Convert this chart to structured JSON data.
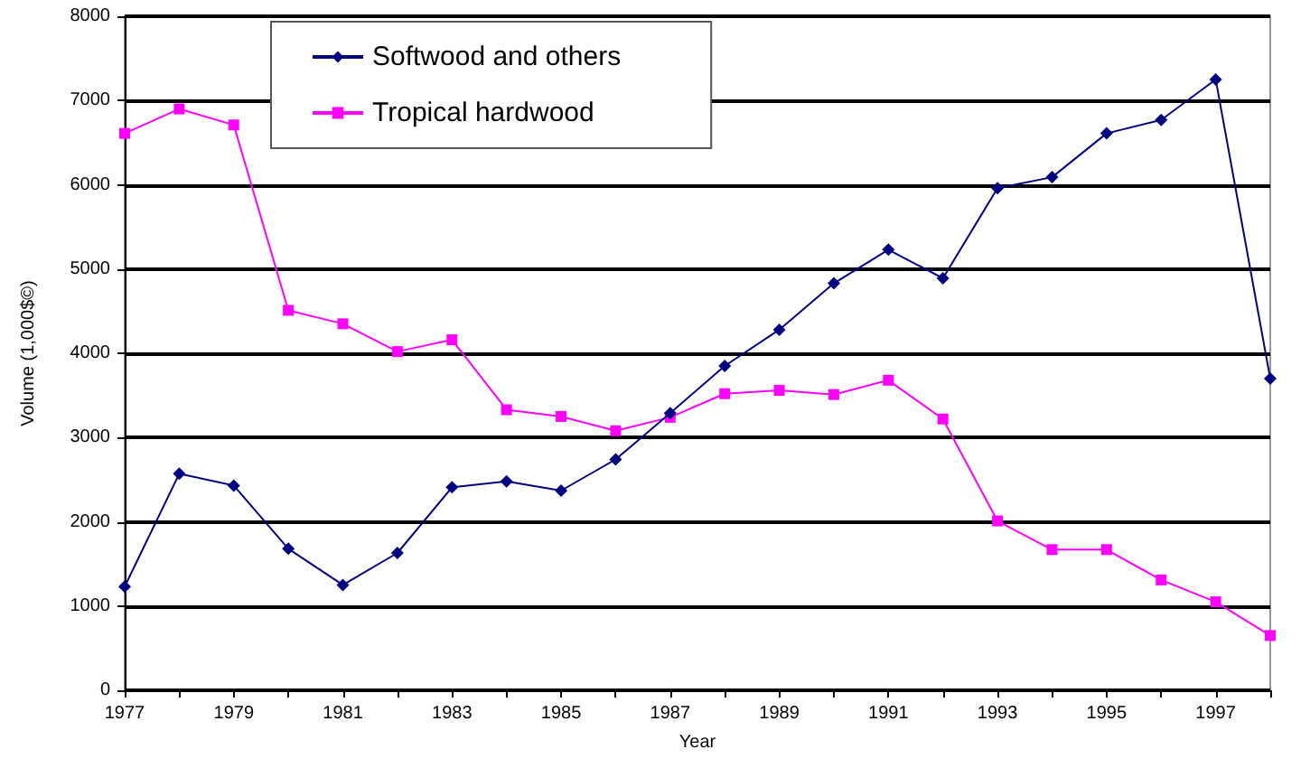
{
  "chart_data": {
    "type": "line",
    "xlabel": "Year",
    "ylabel": "Volume (1,000$©)",
    "categories": [
      "1977",
      null,
      "1979",
      null,
      "1981",
      null,
      "1983",
      null,
      "1985",
      null,
      "1987",
      null,
      "1989",
      null,
      "1991",
      null,
      "1993",
      null,
      "1995",
      null,
      "1997",
      null
    ],
    "series": [
      {
        "name": "Softwood and others",
        "color": "#000080",
        "marker": "diamond",
        "values": [
          1230,
          2570,
          2430,
          1680,
          1250,
          1630,
          2410,
          2480,
          2370,
          2740,
          3290,
          3850,
          4280,
          4830,
          5230,
          4890,
          5960,
          6090,
          6610,
          6770,
          7250,
          3700
        ]
      },
      {
        "name": "Tropical hardwood",
        "color": "#ff00ff",
        "marker": "square",
        "values": [
          6610,
          6900,
          6710,
          4510,
          4350,
          4020,
          4160,
          3330,
          3250,
          3080,
          3240,
          3520,
          3560,
          3510,
          3680,
          3220,
          2010,
          1670,
          1670,
          1310,
          1050,
          650
        ]
      }
    ],
    "ylim": [
      0,
      8000
    ],
    "yticks": [
      0,
      1000,
      2000,
      3000,
      4000,
      5000,
      6000,
      7000,
      8000
    ],
    "grid": "y",
    "legend": "top left",
    "line_style": "solid"
  }
}
